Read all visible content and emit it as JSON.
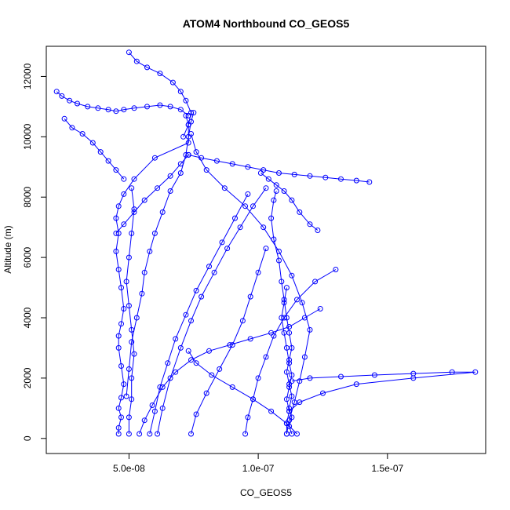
{
  "chart_data": {
    "type": "line",
    "title": "ATOM4 Northbound CO_GEOS5",
    "xlabel": "CO_GEOS5",
    "ylabel": "Altitude (m)",
    "xlim": [
      1.8e-08,
      1.88e-07
    ],
    "ylim": [
      -500,
      13000
    ],
    "xticks": [
      5e-08,
      1e-07,
      1.5e-07
    ],
    "xtick_labels": [
      "5.0e-08",
      "1.0e-07",
      "1.5e-07"
    ],
    "yticks": [
      0,
      2000,
      4000,
      6000,
      8000,
      10000,
      12000
    ],
    "ytick_labels": [
      "0",
      "2000",
      "4000",
      "6000",
      "8000",
      "10000",
      "12000"
    ],
    "grid": false,
    "legend": "none",
    "series_color": "#0000ff",
    "series": [
      {
        "x": [
          4.6e-08,
          4.6e-08,
          4.7e-08,
          4.6e-08,
          4.7e-08,
          4.8e-08,
          4.7e-08,
          4.6e-08,
          4.6e-08,
          4.7e-08,
          4.8e-08,
          4.7e-08,
          4.6e-08,
          4.5e-08,
          4.6e-08,
          4.5e-08,
          4.6e-08,
          4.8e-08,
          5.2e-08,
          6e-08,
          7.3e-08,
          7.3e-08,
          7.2e-08
        ],
        "y": [
          150,
          350,
          700,
          1000,
          1350,
          1800,
          2400,
          3000,
          3400,
          3800,
          4300,
          5000,
          5600,
          6200,
          6800,
          7300,
          7700,
          8100,
          8600,
          9300,
          9800,
          10400,
          10700
        ]
      },
      {
        "x": [
          7.5e-08,
          7.4e-08,
          7.3e-08,
          7.2e-08,
          7e-08,
          6.6e-08,
          6.3e-08,
          6e-08,
          5.8e-08,
          5.6e-08,
          5.5e-08,
          5.3e-08,
          5.1e-08,
          5e-08,
          4.9e-08
        ],
        "y": [
          10800,
          10500,
          10000,
          9400,
          8800,
          8200,
          7500,
          6800,
          6200,
          5500,
          4800,
          4000,
          3200,
          2300,
          1400
        ]
      },
      {
        "x": [
          1.13e-07,
          1.12e-07,
          1.13e-07,
          1.12e-07,
          1.13e-07,
          1.12e-07,
          1.11e-07,
          1.12e-07,
          1.13e-07,
          1.12e-07,
          1.11e-07,
          1.1e-07,
          1.09e-07,
          1.08e-07,
          1.06e-07,
          1.05e-07,
          1.06e-07,
          1.07e-07
        ],
        "y": [
          150,
          400,
          700,
          1000,
          1400,
          1800,
          2200,
          2600,
          3000,
          3500,
          4000,
          4600,
          5200,
          5900,
          6600,
          7300,
          7900,
          8200
        ]
      },
      {
        "x": [
          1.11e-07,
          1.12e-07,
          1.14e-07,
          1.16e-07,
          1.18e-07,
          1.2e-07,
          1.17e-07,
          1.13e-07,
          1.08e-07,
          1.02e-07,
          9.5e-08,
          8.7e-08,
          8e-08,
          7.6e-08,
          7.4e-08
        ],
        "y": [
          150,
          600,
          1200,
          1900,
          2700,
          3600,
          4500,
          5400,
          6200,
          7000,
          7700,
          8300,
          8900,
          9500,
          10100
        ]
      },
      {
        "x": [
          2.2e-08,
          2.4e-08,
          2.7e-08,
          3e-08,
          3.4e-08,
          3.8e-08,
          4.2e-08,
          4.5e-08,
          4.8e-08,
          5.2e-08,
          5.7e-08,
          6.2e-08,
          6.6e-08,
          7e-08,
          7.3e-08
        ],
        "y": [
          11500,
          11350,
          11200,
          11100,
          11000,
          10950,
          10900,
          10850,
          10900,
          10950,
          11000,
          11050,
          11000,
          10900,
          10700
        ]
      },
      {
        "x": [
          2.5e-08,
          2.8e-08,
          3.2e-08,
          3.6e-08,
          3.9e-08,
          4.2e-08,
          4.5e-08,
          4.8e-08
        ],
        "y": [
          10600,
          10300,
          10100,
          9800,
          9500,
          9200,
          8900,
          8600
        ]
      },
      {
        "x": [
          7.3e-08,
          7.8e-08,
          8.4e-08,
          9e-08,
          9.6e-08,
          1.02e-07,
          1.08e-07,
          1.14e-07,
          1.2e-07,
          1.26e-07,
          1.32e-07,
          1.38e-07,
          1.43e-07
        ],
        "y": [
          9400,
          9300,
          9200,
          9100,
          9000,
          8900,
          8800,
          8750,
          8700,
          8650,
          8600,
          8550,
          8500
        ]
      },
      {
        "x": [
          1.13e-07,
          1.2e-07,
          1.32e-07,
          1.45e-07,
          1.6e-07,
          1.75e-07,
          1.84e-07,
          1.6e-07,
          1.38e-07,
          1.25e-07,
          1.16e-07,
          1.12e-07
        ],
        "y": [
          1900,
          2000,
          2050,
          2100,
          2150,
          2200,
          2200,
          2000,
          1800,
          1500,
          1200,
          900
        ]
      },
      {
        "x": [
          5e-08,
          5.3e-08,
          5.7e-08,
          6.2e-08,
          6.7e-08,
          7e-08,
          7.2e-08,
          7.4e-08,
          7.3e-08,
          7.1e-08
        ],
        "y": [
          12800,
          12500,
          12300,
          12100,
          11800,
          11500,
          11200,
          10800,
          10400,
          10000
        ]
      },
      {
        "x": [
          7.4e-08,
          7.6e-08,
          8e-08,
          8.5e-08,
          9e-08,
          9.4e-08,
          9.7e-08,
          1e-07,
          1.03e-07
        ],
        "y": [
          150,
          800,
          1500,
          2300,
          3100,
          3900,
          4700,
          5500,
          6300
        ]
      },
      {
        "x": [
          9.5e-08,
          9.6e-08,
          9.8e-08,
          1e-07,
          1.03e-07,
          1.06e-07,
          1.1e-07,
          1.15e-07,
          1.22e-07,
          1.3e-07
        ],
        "y": [
          150,
          700,
          1300,
          2000,
          2700,
          3400,
          4000,
          4600,
          5200,
          5600
        ]
      },
      {
        "x": [
          5.8e-08,
          6e-08,
          6.2e-08,
          6.5e-08,
          6.8e-08,
          7.2e-08,
          7.6e-08,
          8.1e-08,
          8.6e-08,
          9.1e-08,
          9.6e-08
        ],
        "y": [
          150,
          900,
          1700,
          2500,
          3300,
          4100,
          4900,
          5700,
          6500,
          7300,
          8100
        ]
      },
      {
        "x": [
          6.1e-08,
          6.3e-08,
          6.6e-08,
          7e-08,
          7.4e-08,
          7.8e-08,
          8.3e-08,
          8.8e-08,
          9.3e-08,
          9.8e-08,
          1.03e-07
        ],
        "y": [
          150,
          1000,
          2000,
          3000,
          3900,
          4700,
          5500,
          6300,
          7000,
          7700,
          8300
        ]
      },
      {
        "x": [
          1.01e-07,
          1.04e-07,
          1.07e-07,
          1.1e-07,
          1.13e-07,
          1.16e-07,
          1.2e-07,
          1.23e-07
        ],
        "y": [
          8800,
          8600,
          8400,
          8200,
          7900,
          7500,
          7100,
          6900
        ]
      },
      {
        "x": [
          1.15e-07,
          1.11e-07,
          1.05e-07,
          9.8e-08,
          9e-08,
          8.2e-08,
          7.6e-08,
          7.3e-08
        ],
        "y": [
          150,
          500,
          900,
          1300,
          1700,
          2100,
          2500,
          2900
        ]
      },
      {
        "x": [
          5.4e-08,
          5.6e-08,
          5.9e-08,
          6.3e-08,
          6.8e-08,
          7.4e-08,
          8.1e-08,
          8.9e-08,
          9.7e-08,
          1.05e-07,
          1.12e-07,
          1.18e-07,
          1.24e-07
        ],
        "y": [
          150,
          600,
          1100,
          1700,
          2200,
          2600,
          2900,
          3100,
          3300,
          3500,
          3700,
          4000,
          4300
        ]
      },
      {
        "x": [
          4.5e-08,
          4.8e-08,
          5.2e-08,
          5.6e-08,
          6.1e-08,
          6.6e-08,
          7e-08,
          7.3e-08
        ],
        "y": [
          6800,
          7100,
          7500,
          7900,
          8300,
          8700,
          9100,
          9400
        ]
      },
      {
        "x": [
          5e-08,
          5e-08,
          5.1e-08,
          5.1e-08,
          5.2e-08,
          5.1e-08,
          5e-08,
          4.9e-08,
          5e-08,
          5.1e-08,
          5.2e-08,
          5.1e-08
        ],
        "y": [
          150,
          700,
          1300,
          2000,
          2800,
          3600,
          4400,
          5200,
          6000,
          6800,
          7600,
          8300
        ]
      },
      {
        "x": [
          1.11e-07,
          1.11e-07,
          1.12e-07,
          1.11e-07,
          1.12e-07,
          1.13e-07,
          1.12e-07,
          1.11e-07,
          1.1e-07,
          1.09e-07,
          1.1e-07,
          1.11e-07
        ],
        "y": [
          150,
          500,
          900,
          1300,
          1700,
          2100,
          2500,
          3000,
          3500,
          4000,
          4500,
          5000
        ]
      }
    ]
  }
}
